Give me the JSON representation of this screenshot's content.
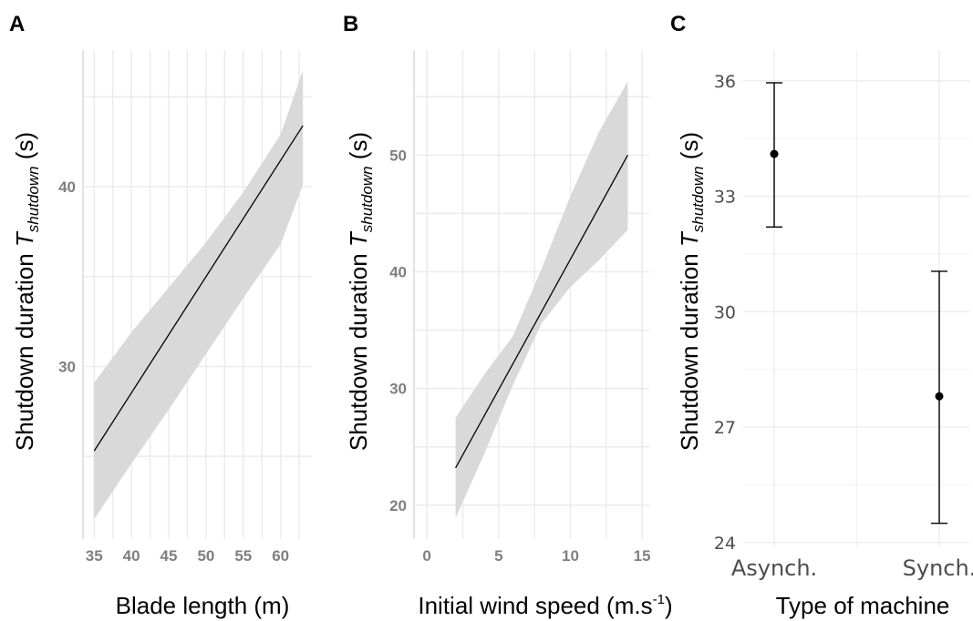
{
  "colors": {
    "grid": "#ebebeb",
    "ribbon": "#d9d9d9",
    "line": "#000000",
    "tick_ab": "#7f7f7f",
    "tick_c": "#4d4d4d"
  },
  "chart_data": [
    {
      "panel": "A",
      "type": "line",
      "xlabel": "Blade length (m)",
      "ylabel": {
        "main": "Shutdown duration ",
        "T": "T",
        "sub": "shutdown",
        "unit": " (s)"
      },
      "xlim": [
        33.5,
        64.2
      ],
      "ylim": [
        20.4,
        47.6
      ],
      "x_ticks": [
        35,
        40,
        45,
        50,
        55,
        60
      ],
      "y_ticks": [
        30,
        40
      ],
      "x_minor_grid": [
        37.5,
        42.5,
        47.5,
        52.5,
        57.5,
        62.5
      ],
      "y_grid": [
        25,
        30,
        35,
        40,
        45
      ],
      "series": [
        {
          "x": [
            35,
            63
          ],
          "y": [
            25.3,
            43.4
          ],
          "ci_lower": [
            21.5,
            24.6,
            27.6,
            30.7,
            33.8,
            36.8,
            40.1
          ],
          "ci_upper": [
            29.1,
            31.9,
            34.4,
            36.9,
            39.7,
            42.9,
            46.5
          ],
          "ci_x": [
            35,
            40,
            45,
            50,
            55,
            60,
            63
          ]
        }
      ]
    },
    {
      "panel": "B",
      "type": "line",
      "xlabel_main": "Initial wind speed (m.s",
      "xlabel_sup": "-1",
      "xlabel_end": ")",
      "ylabel": {
        "main": "Shutdown duration ",
        "T": "T",
        "sub": "shutdown",
        "unit": " (s)"
      },
      "xlim": [
        -0.9,
        15.5
      ],
      "ylim": [
        17.1,
        59.0
      ],
      "x_ticks": [
        0,
        5,
        10,
        15
      ],
      "y_ticks": [
        20,
        30,
        40,
        50
      ],
      "x_minor_grid": [
        2.5,
        7.5,
        12.5
      ],
      "y_grid": [
        20,
        25,
        30,
        35,
        40,
        45,
        50,
        55
      ],
      "series": [
        {
          "x": [
            2,
            14
          ],
          "y": [
            23.2,
            50.0
          ],
          "ci_x": [
            2,
            4,
            6,
            8,
            10,
            12,
            14
          ],
          "ci_lower": [
            18.9,
            24.4,
            30.3,
            35.6,
            38.7,
            41.0,
            43.6
          ],
          "ci_upper": [
            27.5,
            31.2,
            34.5,
            40.3,
            46.5,
            52.0,
            56.3
          ]
        }
      ]
    },
    {
      "panel": "C",
      "type": "errorbar",
      "xlabel": "Type of machine",
      "ylabel": {
        "main": "Shutdown duration ",
        "T": "T",
        "sub": "shutdown",
        "unit": " (s)"
      },
      "categories": [
        "Asynch.",
        "Synch."
      ],
      "ylim": [
        23.9,
        36.8
      ],
      "y_ticks": [
        24,
        27,
        30,
        33,
        36
      ],
      "y_minor_grid": [
        25.5,
        28.5,
        31.5,
        34.5
      ],
      "values": [
        34.1,
        27.8
      ],
      "lower": [
        32.2,
        24.5
      ],
      "upper": [
        35.95,
        31.05
      ]
    }
  ]
}
